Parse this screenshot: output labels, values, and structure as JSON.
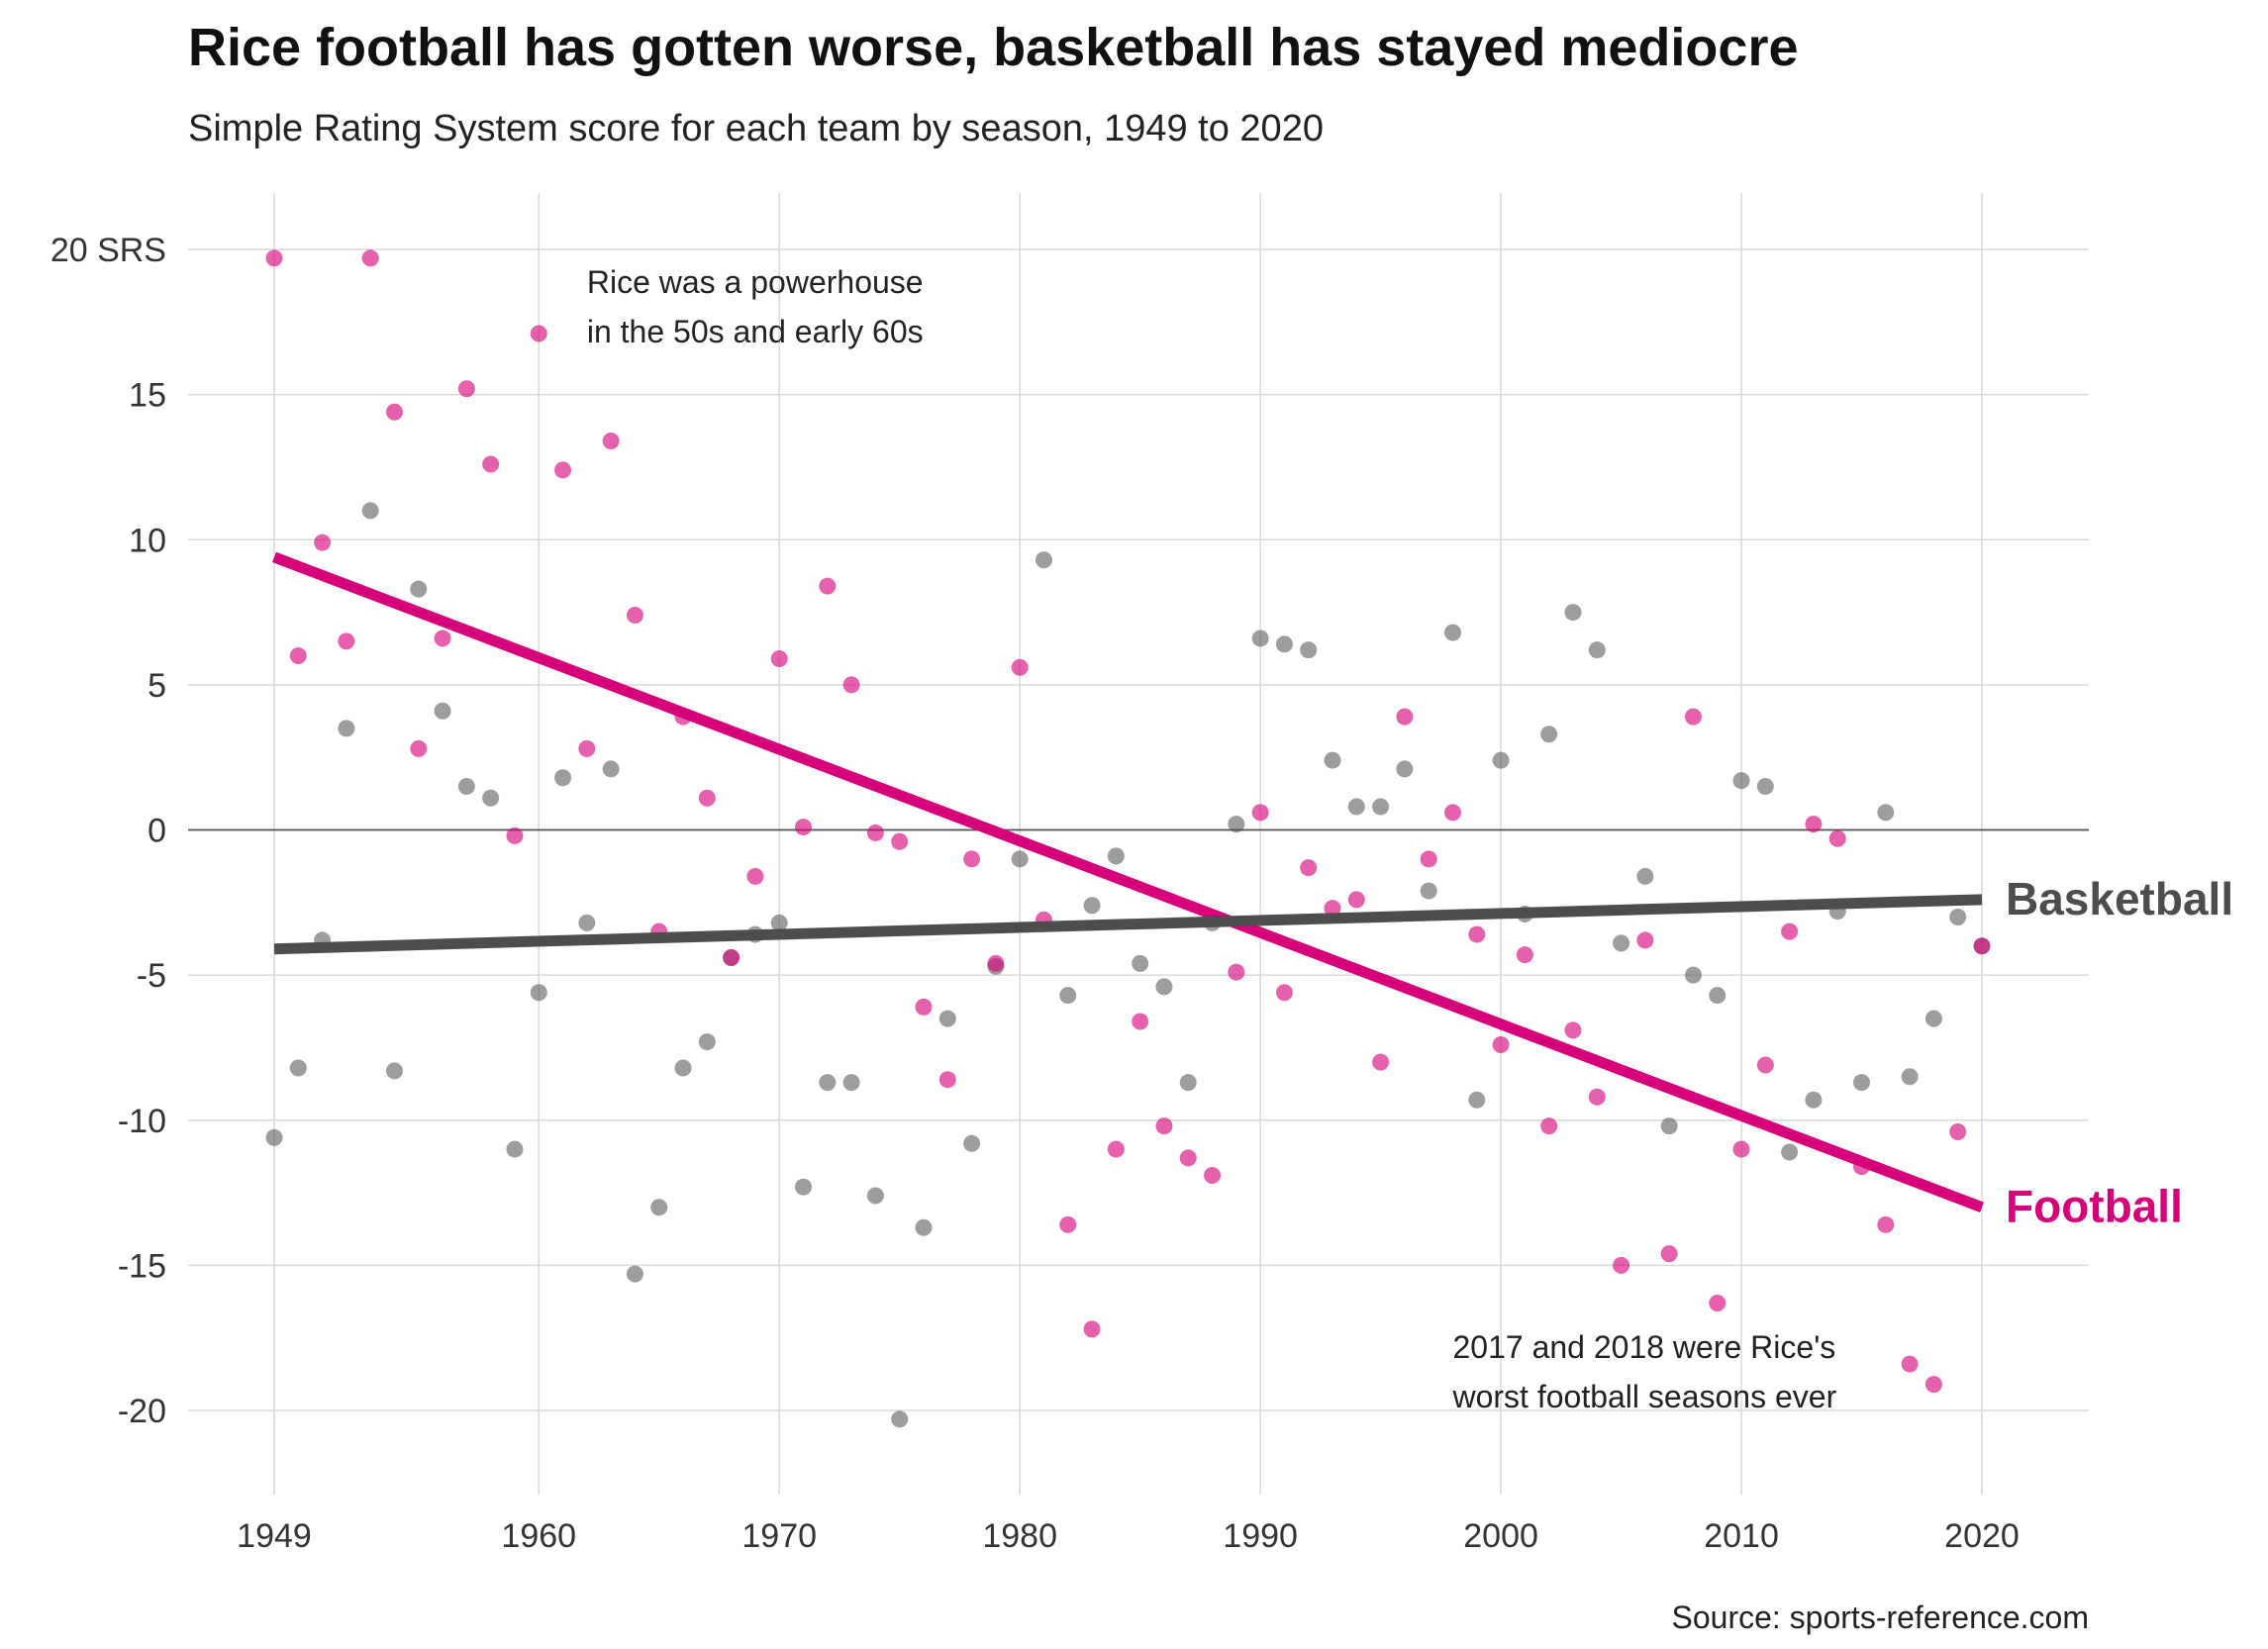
{
  "chart_data": {
    "type": "scatter",
    "title": "Rice football has gotten worse, basketball has stayed mediocre",
    "subtitle": "Simple Rating System score for each team by season, 1949 to 2020",
    "source": "Source: sports-reference.com",
    "xlabel": "",
    "ylabel": "",
    "xlim": [
      1946.5,
      2024.5
    ],
    "ylim": [
      -22.5,
      21
    ],
    "x_ticks": [
      1949,
      1960,
      1970,
      1980,
      1990,
      2000,
      2010,
      2020
    ],
    "x_tick_labels": [
      "1949",
      "1960",
      "1970",
      "1980",
      "1990",
      "2000",
      "2010",
      "2020"
    ],
    "y_ticks": [
      20,
      15,
      10,
      5,
      0,
      -5,
      -10,
      -15,
      -20
    ],
    "y_tick_labels": [
      "20 SRS",
      "15",
      "10",
      "5",
      "0",
      "-5",
      "-10",
      "-15",
      "-20"
    ],
    "grid": true,
    "zero_line": true,
    "annotations": [
      {
        "lines": [
          "Rice was a powerhouse",
          "in the 50s and early 60s"
        ],
        "x": 1962.0,
        "y": 18.5
      },
      {
        "lines": [
          "2017 and 2018 were Rice's",
          "worst football seasons ever"
        ],
        "x": 1998.0,
        "y": -18.2
      }
    ],
    "colors": {
      "football": "#d6007a",
      "basketball": "#4d4d4d"
    },
    "series": [
      {
        "name": "Football",
        "color": "#d6007a",
        "trend": {
          "x": [
            1949,
            2020
          ],
          "y": [
            9.4,
            -13.0
          ]
        },
        "points": [
          [
            1949,
            19.7
          ],
          [
            1950,
            6.0
          ],
          [
            1951,
            9.9
          ],
          [
            1952,
            6.5
          ],
          [
            1953,
            19.7
          ],
          [
            1954,
            14.4
          ],
          [
            1955,
            2.8
          ],
          [
            1956,
            6.6
          ],
          [
            1957,
            15.2
          ],
          [
            1958,
            12.6
          ],
          [
            1959,
            -0.2
          ],
          [
            1960,
            17.1
          ],
          [
            1961,
            12.4
          ],
          [
            1962,
            2.8
          ],
          [
            1963,
            13.4
          ],
          [
            1964,
            7.4
          ],
          [
            1965,
            -3.5
          ],
          [
            1966,
            3.9
          ],
          [
            1967,
            1.1
          ],
          [
            1968,
            -4.4
          ],
          [
            1969,
            -1.6
          ],
          [
            1970,
            5.9
          ],
          [
            1971,
            0.1
          ],
          [
            1972,
            8.4
          ],
          [
            1973,
            5.0
          ],
          [
            1974,
            -0.1
          ],
          [
            1975,
            -0.4
          ],
          [
            1976,
            -6.1
          ],
          [
            1977,
            -8.6
          ],
          [
            1978,
            -1.0
          ],
          [
            1979,
            -4.6
          ],
          [
            1980,
            5.6
          ],
          [
            1981,
            -3.1
          ],
          [
            1982,
            -13.6
          ],
          [
            1983,
            -17.2
          ],
          [
            1984,
            -11.0
          ],
          [
            1985,
            -6.6
          ],
          [
            1986,
            -10.2
          ],
          [
            1987,
            -11.3
          ],
          [
            1988,
            -11.9
          ],
          [
            1989,
            -4.9
          ],
          [
            1990,
            0.6
          ],
          [
            1991,
            -5.6
          ],
          [
            1992,
            -1.3
          ],
          [
            1993,
            -2.7
          ],
          [
            1994,
            -2.4
          ],
          [
            1995,
            -8.0
          ],
          [
            1996,
            3.9
          ],
          [
            1997,
            -1.0
          ],
          [
            1998,
            0.6
          ],
          [
            1999,
            -3.6
          ],
          [
            2000,
            -7.4
          ],
          [
            2001,
            -4.3
          ],
          [
            2002,
            -10.2
          ],
          [
            2003,
            -6.9
          ],
          [
            2004,
            -9.2
          ],
          [
            2005,
            -15.0
          ],
          [
            2006,
            -3.8
          ],
          [
            2007,
            -14.6
          ],
          [
            2008,
            3.9
          ],
          [
            2009,
            -16.3
          ],
          [
            2010,
            -11.0
          ],
          [
            2011,
            -8.1
          ],
          [
            2012,
            -3.5
          ],
          [
            2013,
            0.2
          ],
          [
            2014,
            -0.3
          ],
          [
            2015,
            -11.6
          ],
          [
            2016,
            -13.6
          ],
          [
            2017,
            -18.4
          ],
          [
            2018,
            -19.1
          ],
          [
            2019,
            -10.4
          ],
          [
            2020,
            -4.0
          ]
        ]
      },
      {
        "name": "Basketball",
        "color": "#4d4d4d",
        "trend": {
          "x": [
            1949,
            2020
          ],
          "y": [
            -4.1,
            -2.4
          ]
        },
        "points": [
          [
            1949,
            -10.6
          ],
          [
            1950,
            -8.2
          ],
          [
            1951,
            -3.8
          ],
          [
            1952,
            3.5
          ],
          [
            1953,
            11.0
          ],
          [
            1954,
            -8.3
          ],
          [
            1955,
            8.3
          ],
          [
            1956,
            4.1
          ],
          [
            1957,
            1.5
          ],
          [
            1958,
            1.1
          ],
          [
            1959,
            -11.0
          ],
          [
            1960,
            -5.6
          ],
          [
            1961,
            1.8
          ],
          [
            1962,
            -3.2
          ],
          [
            1963,
            2.1
          ],
          [
            1964,
            -15.3
          ],
          [
            1965,
            -13.0
          ],
          [
            1966,
            -8.2
          ],
          [
            1967,
            -7.3
          ],
          [
            1968,
            -4.4
          ],
          [
            1969,
            -3.6
          ],
          [
            1970,
            -3.2
          ],
          [
            1971,
            -12.3
          ],
          [
            1972,
            -8.7
          ],
          [
            1973,
            -8.7
          ],
          [
            1974,
            -12.6
          ],
          [
            1975,
            -20.3
          ],
          [
            1976,
            -13.7
          ],
          [
            1977,
            -6.5
          ],
          [
            1978,
            -10.8
          ],
          [
            1979,
            -4.7
          ],
          [
            1980,
            -1.0
          ],
          [
            1981,
            9.3
          ],
          [
            1982,
            -5.7
          ],
          [
            1983,
            -2.6
          ],
          [
            1984,
            -0.9
          ],
          [
            1985,
            -4.6
          ],
          [
            1986,
            -5.4
          ],
          [
            1987,
            -8.7
          ],
          [
            1988,
            -3.2
          ],
          [
            1989,
            0.2
          ],
          [
            1990,
            6.6
          ],
          [
            1991,
            6.4
          ],
          [
            1992,
            6.2
          ],
          [
            1993,
            2.4
          ],
          [
            1994,
            0.8
          ],
          [
            1995,
            0.8
          ],
          [
            1996,
            2.1
          ],
          [
            1997,
            -2.1
          ],
          [
            1998,
            6.8
          ],
          [
            1999,
            -9.3
          ],
          [
            2000,
            2.4
          ],
          [
            2001,
            -2.9
          ],
          [
            2002,
            3.3
          ],
          [
            2003,
            7.5
          ],
          [
            2004,
            6.2
          ],
          [
            2005,
            -3.9
          ],
          [
            2006,
            -1.6
          ],
          [
            2007,
            -10.2
          ],
          [
            2008,
            -5.0
          ],
          [
            2009,
            -5.7
          ],
          [
            2010,
            1.7
          ],
          [
            2011,
            1.5
          ],
          [
            2012,
            -11.1
          ],
          [
            2013,
            -9.3
          ],
          [
            2014,
            -2.8
          ],
          [
            2015,
            -8.7
          ],
          [
            2016,
            0.6
          ],
          [
            2017,
            -8.5
          ],
          [
            2018,
            -6.5
          ],
          [
            2019,
            -3.0
          ],
          [
            2020,
            -4.0
          ]
        ]
      }
    ]
  }
}
